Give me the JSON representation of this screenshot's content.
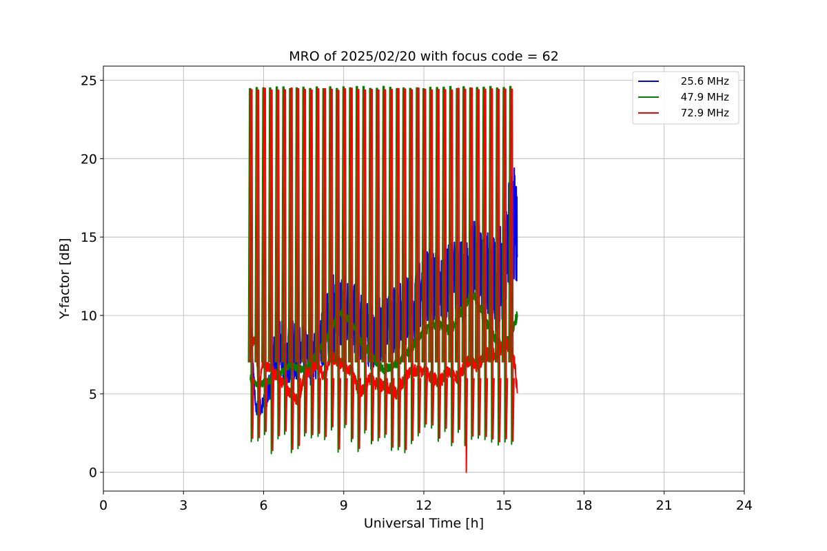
{
  "chart_data": {
    "type": "line",
    "title": "MRO of 2025/02/20 with focus code = 62",
    "xlabel": "Universal Time [h]",
    "ylabel": "Y-factor [dB]",
    "xlim": [
      0,
      24
    ],
    "ylim": [
      -1.2,
      25.9
    ],
    "xticks": [
      0,
      3,
      6,
      9,
      12,
      15,
      18,
      21,
      24
    ],
    "yticks": [
      0,
      5,
      10,
      15,
      20,
      25
    ],
    "grid": true,
    "legend_position": "top-right",
    "data_window": [
      5.5,
      15.5
    ],
    "calibration_spike_interval_h": 0.25,
    "series": [
      {
        "name": "25.6 MHz",
        "color": "#0000ff",
        "baseline": {
          "x": [
            5.5,
            5.7,
            6.0,
            6.3,
            6.5,
            6.8,
            7.0,
            7.3,
            7.6,
            7.8,
            8.0,
            8.3,
            8.6,
            8.9,
            9.2,
            9.5,
            9.8,
            10.0,
            10.3,
            10.6,
            10.9,
            11.2,
            11.5,
            11.8,
            12.0,
            12.3,
            12.6,
            12.9,
            13.2,
            13.5,
            13.8,
            14.1,
            14.4,
            14.7,
            15.0,
            15.2,
            15.4,
            15.5
          ],
          "y": [
            10.0,
            4.0,
            4.2,
            6.0,
            8.5,
            7.0,
            7.8,
            7.5,
            7.5,
            7.2,
            7.5,
            9.0,
            10.0,
            10.5,
            10.2,
            9.5,
            9.0,
            8.5,
            9.0,
            9.5,
            9.8,
            10.0,
            10.5,
            11.0,
            12.0,
            12.0,
            11.5,
            12.0,
            12.5,
            12.0,
            13.5,
            13.0,
            12.5,
            12.0,
            13.0,
            15.0,
            16.0,
            14.0
          ]
        },
        "fluctuation": {
          "x": [
            5.5,
            6.3,
            6.5,
            8.0,
            8.6,
            10.0,
            12.0,
            13.5,
            14.5,
            15.0,
            15.2,
            15.5
          ],
          "amplitude": [
            0.3,
            1.0,
            2.2,
            1.6,
            2.6,
            2.0,
            2.4,
            2.6,
            3.0,
            3.2,
            3.8,
            3.5
          ]
        }
      },
      {
        "name": "47.9 MHz",
        "color": "#008000",
        "baseline": {
          "x": [
            5.5,
            5.8,
            6.2,
            6.5,
            7.0,
            7.5,
            8.0,
            8.5,
            8.8,
            9.0,
            9.3,
            9.6,
            10.0,
            10.5,
            11.0,
            11.5,
            12.0,
            12.5,
            13.0,
            13.5,
            13.8,
            14.0,
            14.5,
            15.0,
            15.3,
            15.5
          ],
          "y": [
            6.0,
            5.6,
            5.8,
            6.2,
            6.8,
            6.5,
            7.5,
            9.0,
            10.0,
            10.2,
            9.5,
            8.5,
            7.5,
            6.5,
            7.0,
            7.8,
            9.0,
            9.5,
            9.0,
            10.5,
            11.5,
            10.8,
            9.0,
            7.8,
            9.0,
            10.0
          ]
        },
        "fluctuation": {
          "x": [
            5.5,
            15.5
          ],
          "amplitude": [
            0.25,
            0.35
          ]
        }
      },
      {
        "name": "72.9 MHz",
        "color": "#ff0000",
        "baseline": {
          "x": [
            5.5,
            5.7,
            5.8,
            6.0,
            6.3,
            6.6,
            7.0,
            7.3,
            7.5,
            7.8,
            8.0,
            8.3,
            8.5,
            8.8,
            9.0,
            9.3,
            9.6,
            10.0,
            10.3,
            10.6,
            11.0,
            11.3,
            11.6,
            12.0,
            12.3,
            12.6,
            13.0,
            13.3,
            13.6,
            14.0,
            14.3,
            14.6,
            15.0,
            15.2,
            15.4,
            15.5
          ],
          "y": [
            8.0,
            8.5,
            5.5,
            7.0,
            6.5,
            6.0,
            5.0,
            4.5,
            6.0,
            6.5,
            7.0,
            6.0,
            7.5,
            7.0,
            6.8,
            6.5,
            5.0,
            6.0,
            5.5,
            5.5,
            5.0,
            6.0,
            6.5,
            6.5,
            6.0,
            5.8,
            6.5,
            6.0,
            7.0,
            6.8,
            7.5,
            7.5,
            8.0,
            8.2,
            7.0,
            5.0
          ]
        },
        "fluctuation": {
          "x": [
            5.5,
            15.5
          ],
          "amplitude": [
            0.35,
            0.45
          ]
        }
      }
    ],
    "calibration_spikes": {
      "start_x": 5.5,
      "interval_h": 0.25,
      "count": 40,
      "peak_y": 24.6,
      "trough_y": [
        1.1,
        2.9
      ],
      "colors": [
        "#008000",
        "#ff0000"
      ],
      "notes_dip_to_zero_at_x": 13.5
    }
  }
}
